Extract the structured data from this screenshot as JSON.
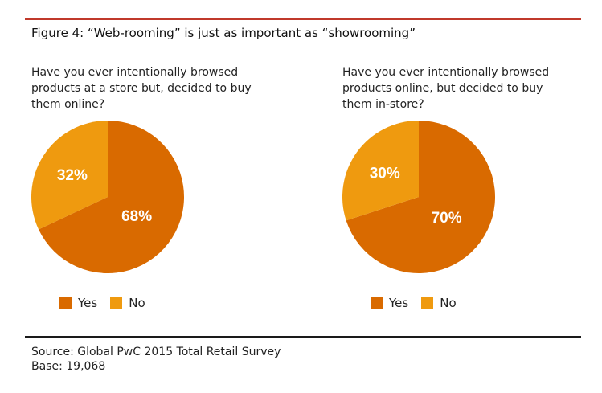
{
  "figure_title": "Figure 4: “Web-rooming” is just as important as “showrooming”",
  "colors": {
    "yes": "#d96a00",
    "no": "#ef9a0f",
    "rule_top": "#c0392b"
  },
  "chart_data": [
    {
      "type": "pie",
      "title": "Have you ever intentionally browsed products at a store but, decided to buy them online?",
      "categories": [
        "Yes",
        "No"
      ],
      "values": [
        68,
        32
      ],
      "labels": [
        "68%",
        "32%"
      ],
      "legend": [
        "Yes",
        "No"
      ],
      "legend_placement": "bottom"
    },
    {
      "type": "pie",
      "title": "Have you ever intentionally browsed products online, but decided to buy them in-store?",
      "categories": [
        "Yes",
        "No"
      ],
      "values": [
        70,
        30
      ],
      "labels": [
        "70%",
        "30%"
      ],
      "legend": [
        "Yes",
        "No"
      ],
      "legend_placement": "bottom"
    }
  ],
  "footer": {
    "source": "Source: Global PwC 2015 Total Retail Survey",
    "base": "Base: 19,068"
  }
}
